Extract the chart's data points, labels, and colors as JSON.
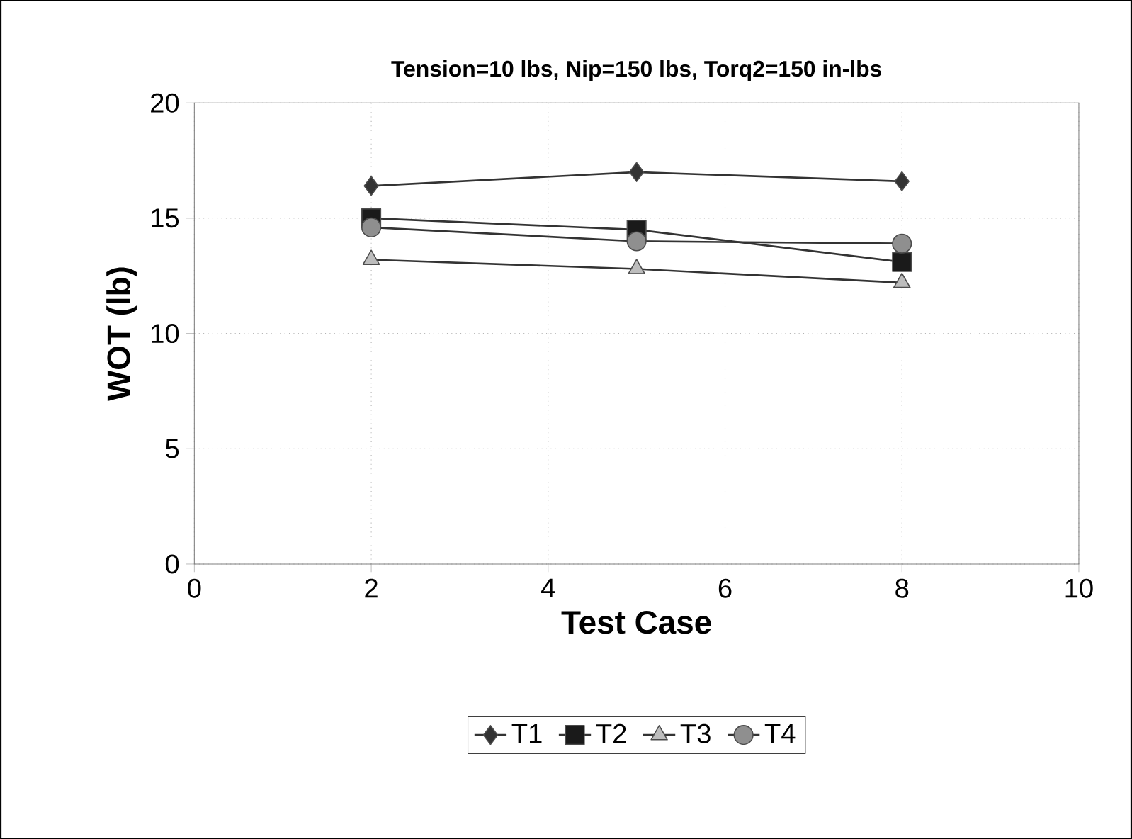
{
  "chart_data": {
    "type": "line",
    "title": "Tension=10 lbs, Nip=150 lbs, Torq2=150 in-lbs",
    "xlabel": "Test Case",
    "ylabel": "WOT (lb)",
    "x": [
      2,
      5,
      8
    ],
    "xlim": [
      0,
      10
    ],
    "xticks": [
      0,
      2,
      4,
      6,
      8,
      10
    ],
    "ylim": [
      0,
      20
    ],
    "yticks": [
      0,
      5,
      10,
      15,
      20
    ],
    "grid": true,
    "legend": "bottom",
    "series": [
      {
        "name": "T1",
        "color": "#333333",
        "marker": "diamond",
        "values": [
          16.4,
          17.0,
          16.6
        ]
      },
      {
        "name": "T2",
        "color": "#1a1a1a",
        "marker": "square",
        "values": [
          15.0,
          14.5,
          13.1
        ]
      },
      {
        "name": "T3",
        "color": "#bdbdbd",
        "marker": "triangle",
        "values": [
          13.2,
          12.8,
          12.2
        ]
      },
      {
        "name": "T4",
        "color": "#8f8f8f",
        "marker": "circle",
        "values": [
          14.6,
          14.0,
          13.9
        ]
      }
    ]
  }
}
